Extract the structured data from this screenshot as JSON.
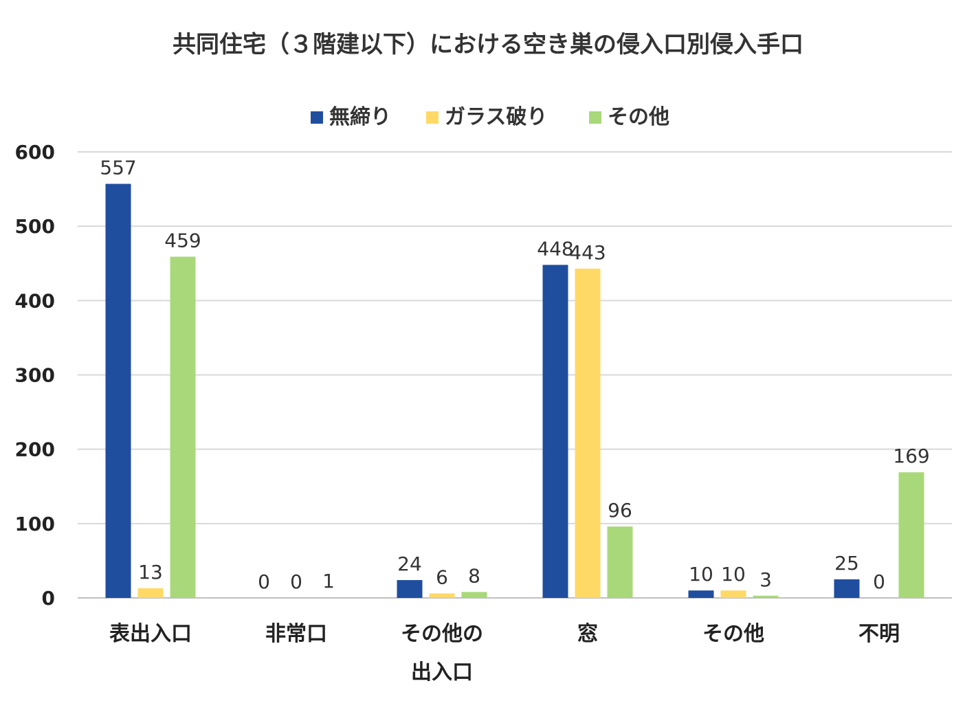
{
  "chart_data": {
    "type": "bar",
    "title": "共同住宅（３階建以下）における空き巣の侵入口別侵入手口",
    "xlabel": "",
    "ylabel": "",
    "ylim": [
      0,
      600
    ],
    "yticks": [
      0,
      100,
      200,
      300,
      400,
      500,
      600
    ],
    "grid": true,
    "legend_position": "top",
    "categories": [
      [
        "表出入口"
      ],
      [
        "非常口"
      ],
      [
        "その他の",
        "出入口"
      ],
      [
        "窓"
      ],
      [
        "その他"
      ],
      [
        "不明"
      ]
    ],
    "series": [
      {
        "name": "無締り",
        "color": "#1F4E9F",
        "values": [
          557,
          0,
          24,
          448,
          10,
          25
        ]
      },
      {
        "name": "ガラス破り",
        "color": "#FFD966",
        "values": [
          13,
          0,
          6,
          443,
          10,
          0
        ]
      },
      {
        "name": "その他",
        "color": "#A9D87A",
        "values": [
          459,
          1,
          8,
          96,
          3,
          169
        ]
      }
    ]
  }
}
